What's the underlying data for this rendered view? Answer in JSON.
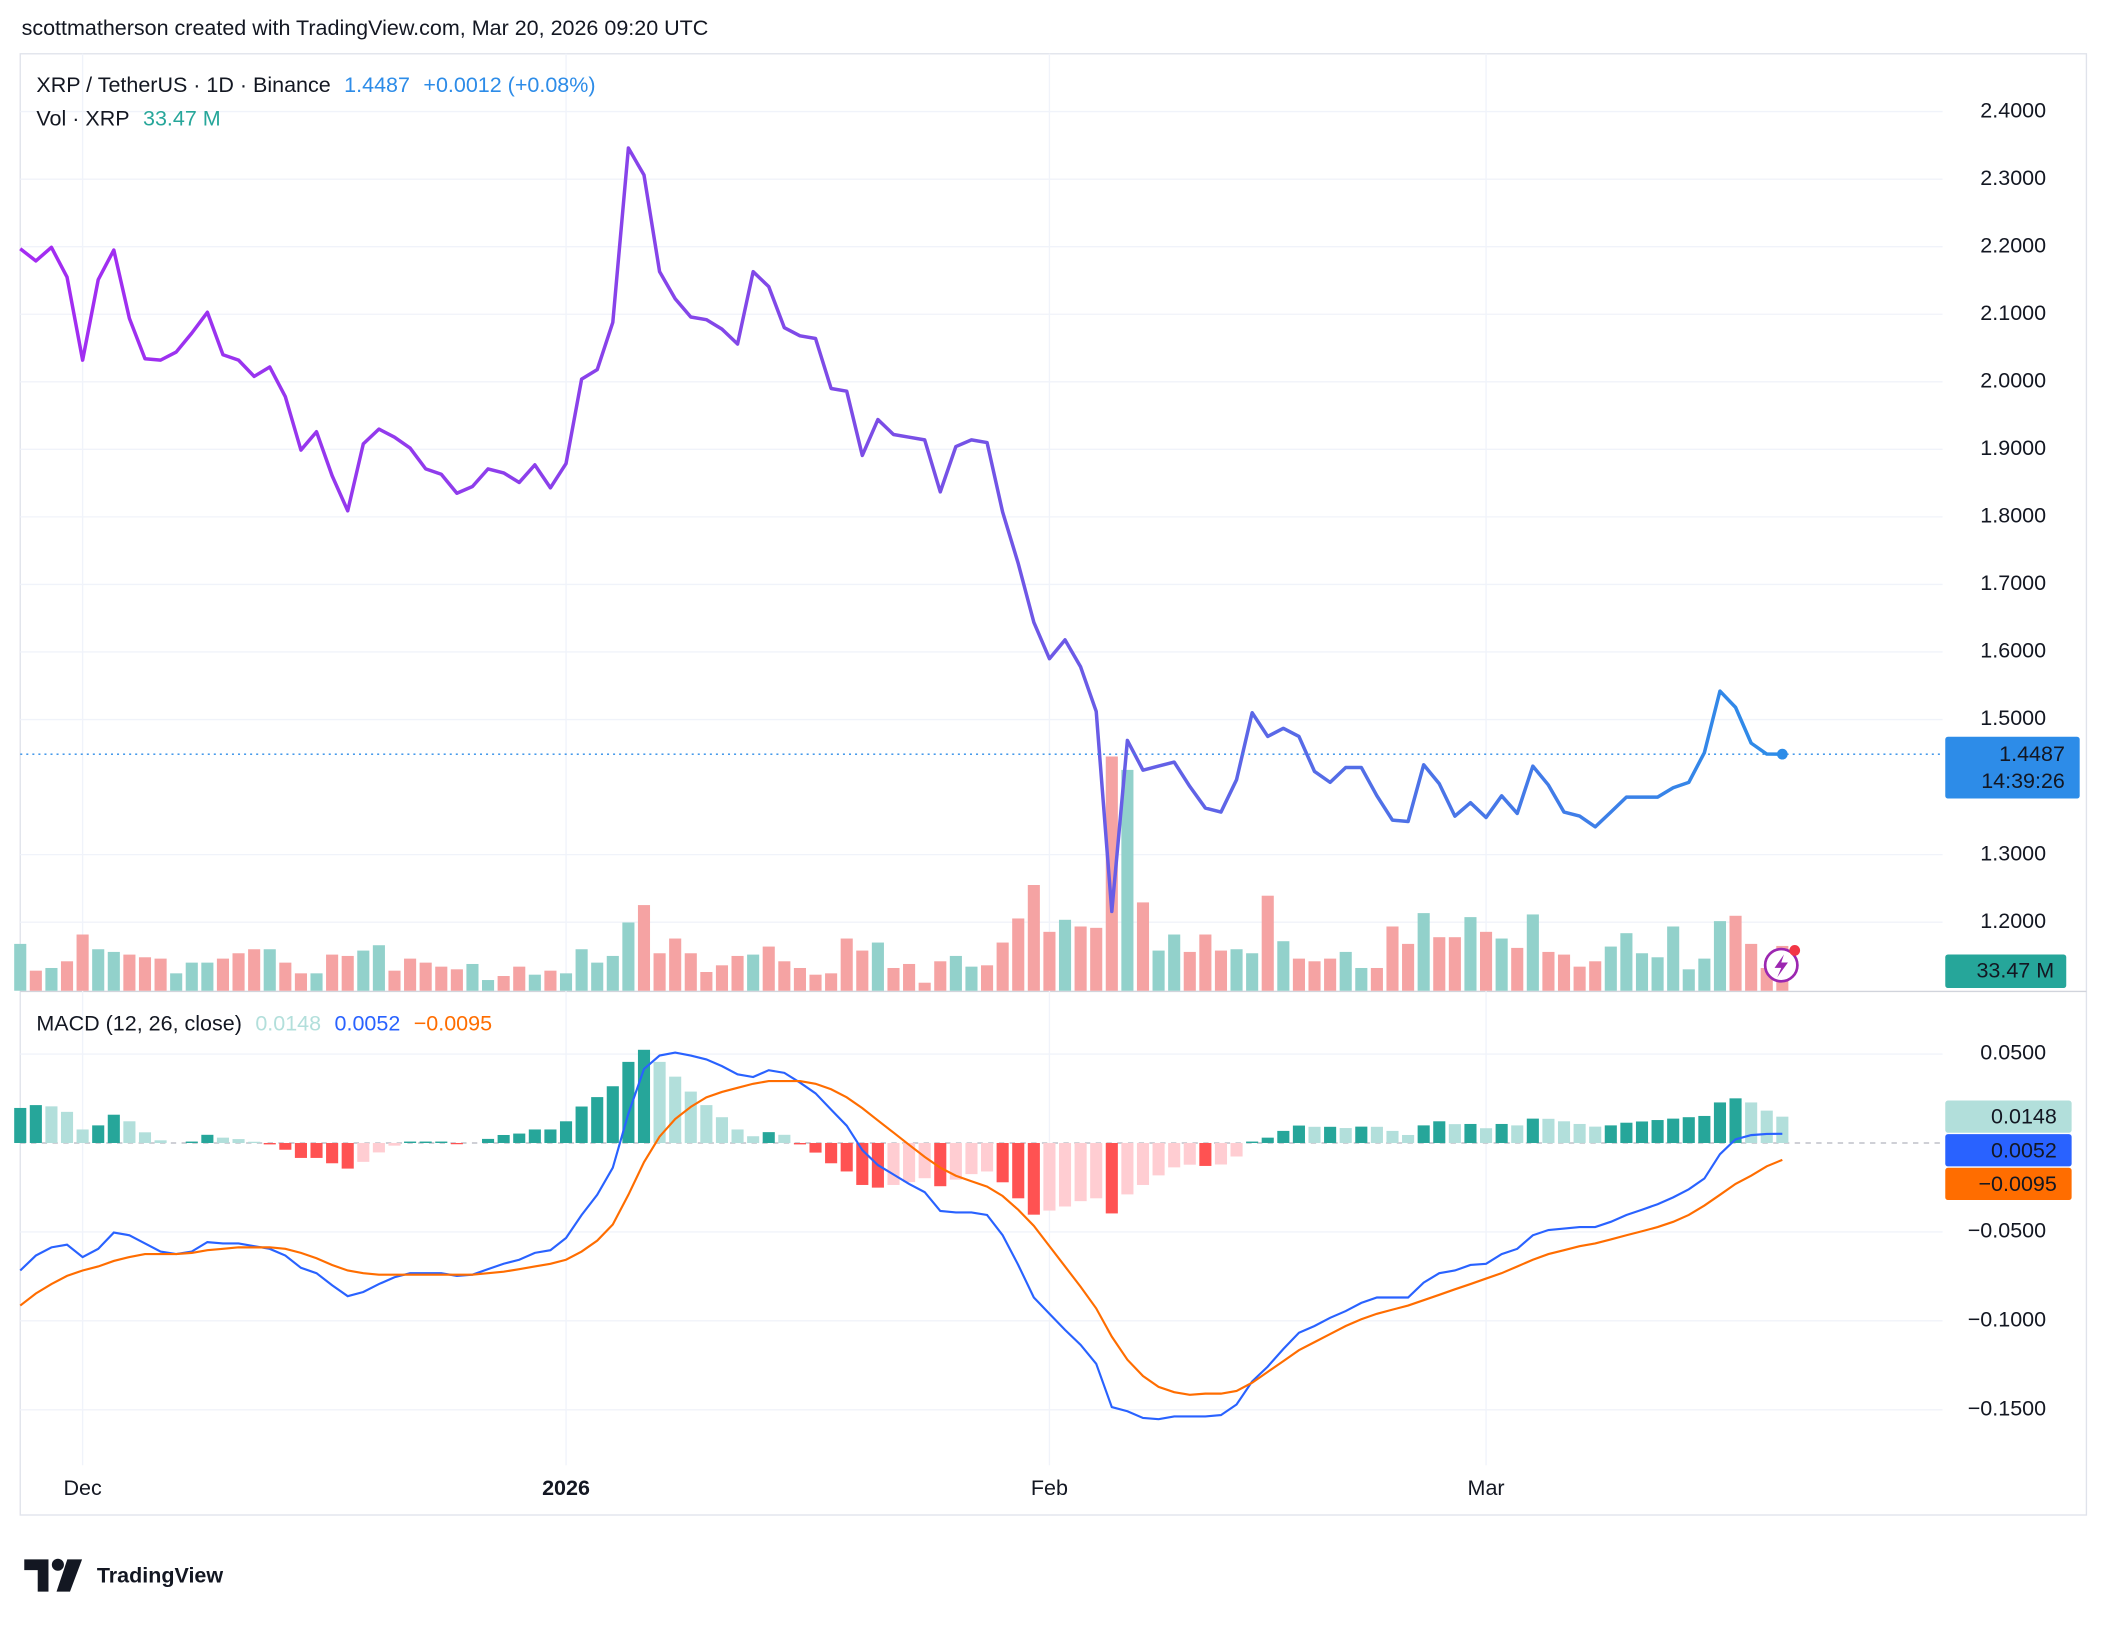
{
  "header": {
    "text": "scottmatherson created with TradingView.com, Mar 20, 2026 09:20 UTC"
  },
  "footer": {
    "brand": "TradingView"
  },
  "chart_data": [
    {
      "type": "line",
      "title": "XRP / TetherUS · 1D · Binance",
      "change": "+0.0012 (+0.08%)",
      "countdown": "14:39:26",
      "gradient": [
        "#a42bf2",
        "#7a4ee6",
        "#2d8ce8"
      ],
      "last_color": "#2d8ce8",
      "grid": true,
      "ylim": [
        1.0985,
        2.4856
      ],
      "yticks": [
        {
          "value": 1.2,
          "label": "1.2000"
        },
        {
          "value": 1.3,
          "label": "1.3000"
        },
        {
          "value": 1.5,
          "label": "1.5000"
        },
        {
          "value": 1.6,
          "label": "1.6000"
        },
        {
          "value": 1.7,
          "label": "1.7000"
        },
        {
          "value": 1.8,
          "label": "1.8000"
        },
        {
          "value": 1.9,
          "label": "1.9000"
        },
        {
          "value": 2.0,
          "label": "2.0000"
        },
        {
          "value": 2.1,
          "label": "2.1000"
        },
        {
          "value": 2.2,
          "label": "2.2000"
        },
        {
          "value": 2.3,
          "label": "2.3000"
        },
        {
          "value": 2.4,
          "label": "2.4000"
        }
      ],
      "values": [
        2.197,
        2.179,
        2.199,
        2.155,
        2.032,
        2.151,
        2.195,
        2.094,
        2.034,
        2.032,
        2.044,
        2.072,
        2.103,
        2.04,
        2.032,
        2.008,
        2.022,
        1.978,
        1.899,
        1.926,
        1.861,
        1.809,
        1.908,
        1.93,
        1.918,
        1.902,
        1.871,
        1.863,
        1.835,
        1.845,
        1.871,
        1.865,
        1.851,
        1.877,
        1.843,
        1.879,
        2.004,
        2.018,
        2.088,
        2.346,
        2.306,
        2.163,
        2.123,
        2.096,
        2.092,
        2.078,
        2.056,
        2.163,
        2.141,
        2.08,
        2.068,
        2.064,
        1.99,
        1.986,
        1.891,
        1.944,
        1.922,
        1.918,
        1.914,
        1.837,
        1.904,
        1.914,
        1.91,
        1.807,
        1.731,
        1.644,
        1.59,
        1.618,
        1.578,
        1.512,
        1.216,
        1.469,
        1.425,
        1.431,
        1.437,
        1.401,
        1.369,
        1.363,
        1.411,
        1.51,
        1.475,
        1.487,
        1.475,
        1.423,
        1.407,
        1.429,
        1.429,
        1.387,
        1.351,
        1.349,
        1.433,
        1.405,
        1.357,
        1.377,
        1.355,
        1.387,
        1.361,
        1.431,
        1.403,
        1.363,
        1.357,
        1.341,
        1.363,
        1.385,
        1.385,
        1.385,
        1.399,
        1.407,
        1.451,
        1.542,
        1.518,
        1.465,
        1.449,
        1.4487
      ]
    },
    {
      "type": "bar",
      "title": "Vol · XRP",
      "value_label": "33.47 M",
      "up_color": "#92d1cb",
      "down_color": "#f5a3a3",
      "label_color": "#26a69a",
      "ylim": [
        0,
        700
      ],
      "values": [
        35,
        15,
        17,
        22,
        42,
        31,
        29,
        27,
        25,
        24,
        13,
        21,
        21,
        24,
        28,
        31,
        31,
        21,
        13,
        13,
        27,
        26,
        30,
        34,
        15,
        24,
        21,
        18,
        16,
        20,
        8,
        11,
        18,
        12,
        15,
        13,
        31,
        21,
        26,
        51,
        64,
        28,
        39,
        28,
        14,
        19,
        26,
        27,
        33,
        22,
        17,
        12,
        13,
        39,
        30,
        36,
        17,
        20,
        6,
        22,
        26,
        18,
        19,
        36,
        54,
        79,
        44,
        53,
        48,
        47,
        175,
        165,
        66,
        30,
        42,
        29,
        42,
        30,
        31,
        28,
        71,
        37,
        24,
        22,
        24,
        29,
        17,
        17,
        48,
        35,
        58,
        40,
        40,
        55,
        44,
        39,
        32,
        57,
        29,
        27,
        18,
        22,
        33,
        43,
        28,
        25,
        48,
        16,
        24,
        52,
        56,
        35,
        17,
        33.47
      ]
    },
    {
      "type": "macd",
      "title": "MACD (12, 26, close)",
      "legend_values": [
        "0.0148",
        "0.0052",
        "−0.0095"
      ],
      "hist_colors": [
        "#26a69a",
        "#b2dfdb",
        "#ff5252",
        "#ffcdd2"
      ],
      "ylim": [
        -0.1812,
        0.0856
      ],
      "yticks": [
        {
          "value": 0.05,
          "label": "0.0500"
        },
        {
          "value": -0.05,
          "label": "−0.0500"
        },
        {
          "value": -0.1,
          "label": "−0.1000"
        },
        {
          "value": -0.15,
          "label": "−0.1500"
        }
      ],
      "categories": [
        null,
        null,
        null,
        null,
        "Dec",
        null,
        null,
        null,
        null,
        null,
        null,
        null,
        null,
        null,
        null,
        null,
        null,
        null,
        null,
        null,
        null,
        null,
        null,
        null,
        null,
        null,
        null,
        null,
        null,
        null,
        null,
        null,
        null,
        null,
        null,
        "2026",
        null,
        null,
        null,
        null,
        null,
        null,
        null,
        null,
        null,
        null,
        null,
        null,
        null,
        null,
        null,
        null,
        null,
        null,
        null,
        null,
        null,
        null,
        null,
        null,
        null,
        null,
        null,
        null,
        null,
        null,
        "Feb",
        null,
        null,
        null,
        null,
        null,
        null,
        null,
        null,
        null,
        null,
        null,
        null,
        null,
        null,
        null,
        null,
        null,
        null,
        null,
        null,
        null,
        null,
        null,
        null,
        null,
        null,
        null,
        "Mar",
        null,
        null,
        null,
        null,
        null,
        null,
        null,
        null,
        null,
        null,
        null,
        null,
        null,
        null,
        null,
        null,
        null,
        null,
        null
      ],
      "histogram": [
        0.0197,
        0.0213,
        0.0206,
        0.0175,
        0.0076,
        0.0099,
        0.0159,
        0.0122,
        0.006,
        0.0015,
        0.0,
        0.0008,
        0.0046,
        0.003,
        0.0022,
        0.0007,
        -0.0008,
        -0.0038,
        -0.0084,
        -0.0084,
        -0.0114,
        -0.0144,
        -0.0106,
        -0.0053,
        -0.0015,
        0.0008,
        0.0008,
        0.0008,
        -0.0007,
        0.0,
        0.0023,
        0.0045,
        0.0053,
        0.0076,
        0.0076,
        0.0122,
        0.0205,
        0.0258,
        0.0319,
        0.0456,
        0.0524,
        0.0456,
        0.0373,
        0.0289,
        0.0213,
        0.0145,
        0.0076,
        0.0038,
        0.0061,
        0.0046,
        -0.0008,
        -0.0054,
        -0.0114,
        -0.016,
        -0.0236,
        -0.0251,
        -0.0236,
        -0.022,
        -0.0198,
        -0.0243,
        -0.0206,
        -0.0175,
        -0.016,
        -0.0221,
        -0.0311,
        -0.0403,
        -0.038,
        -0.0357,
        -0.0327,
        -0.0311,
        -0.0396,
        -0.0289,
        -0.0236,
        -0.0182,
        -0.0137,
        -0.0122,
        -0.0129,
        -0.0121,
        -0.0076,
        0.0008,
        0.003,
        0.0068,
        0.0098,
        0.0091,
        0.0091,
        0.0084,
        0.0092,
        0.0091,
        0.0068,
        0.0045,
        0.0099,
        0.0122,
        0.0106,
        0.0107,
        0.0083,
        0.0107,
        0.0099,
        0.0137,
        0.0136,
        0.0122,
        0.0107,
        0.0092,
        0.0099,
        0.0114,
        0.0121,
        0.0129,
        0.0137,
        0.0145,
        0.0152,
        0.0228,
        0.0251,
        0.0228,
        0.0182,
        0.0148
      ],
      "series": [
        {
          "color": "#2962ff",
          "values": [
            -0.0717,
            -0.0633,
            -0.0587,
            -0.0572,
            -0.0641,
            -0.0595,
            -0.0504,
            -0.0519,
            -0.0565,
            -0.061,
            -0.0625,
            -0.061,
            -0.0557,
            -0.0565,
            -0.0565,
            -0.058,
            -0.0595,
            -0.0633,
            -0.0702,
            -0.0732,
            -0.08,
            -0.0861,
            -0.0838,
            -0.0793,
            -0.0755,
            -0.0732,
            -0.0732,
            -0.0732,
            -0.0747,
            -0.074,
            -0.0709,
            -0.0679,
            -0.0656,
            -0.0618,
            -0.0603,
            -0.0534,
            -0.0405,
            -0.0291,
            -0.0139,
            0.0165,
            0.0416,
            0.0492,
            0.0508,
            0.0492,
            0.047,
            0.0432,
            0.0386,
            0.0371,
            0.0409,
            0.0394,
            0.034,
            0.0279,
            0.0188,
            0.0097,
            -0.004,
            -0.0124,
            -0.0177,
            -0.023,
            -0.0276,
            -0.0382,
            -0.039,
            -0.039,
            -0.0405,
            -0.0519,
            -0.0686,
            -0.0869,
            -0.096,
            -0.1051,
            -0.1135,
            -0.1241,
            -0.1485,
            -0.1508,
            -0.1546,
            -0.1553,
            -0.1538,
            -0.1538,
            -0.1538,
            -0.153,
            -0.147,
            -0.134,
            -0.1257,
            -0.1158,
            -0.1067,
            -0.1029,
            -0.0983,
            -0.0945,
            -0.0899,
            -0.0869,
            -0.0869,
            -0.0869,
            -0.0785,
            -0.0732,
            -0.0717,
            -0.0686,
            -0.0679,
            -0.0625,
            -0.0595,
            -0.0519,
            -0.0489,
            -0.0481,
            -0.0473,
            -0.0473,
            -0.0443,
            -0.0405,
            -0.0375,
            -0.0344,
            -0.0306,
            -0.026,
            -0.02,
            -0.0063,
            0.0021,
            0.0044,
            0.0051,
            0.0052
          ]
        },
        {
          "color": "#ff6d00",
          "values": [
            -0.0914,
            -0.0846,
            -0.0793,
            -0.0747,
            -0.0717,
            -0.0694,
            -0.0663,
            -0.0641,
            -0.0625,
            -0.0625,
            -0.0625,
            -0.0618,
            -0.0603,
            -0.0595,
            -0.0587,
            -0.0587,
            -0.0587,
            -0.0595,
            -0.0618,
            -0.0648,
            -0.0686,
            -0.0717,
            -0.0732,
            -0.074,
            -0.074,
            -0.074,
            -0.074,
            -0.074,
            -0.074,
            -0.074,
            -0.0732,
            -0.0724,
            -0.0709,
            -0.0694,
            -0.0679,
            -0.0656,
            -0.061,
            -0.0549,
            -0.0458,
            -0.0291,
            -0.0108,
            0.0036,
            0.0135,
            0.0203,
            0.0257,
            0.0287,
            0.031,
            0.0333,
            0.0348,
            0.0348,
            0.0348,
            0.0333,
            0.0302,
            0.0257,
            0.0196,
            0.0127,
            0.0059,
            -0.001,
            -0.0078,
            -0.0139,
            -0.0184,
            -0.0215,
            -0.0245,
            -0.0298,
            -0.0375,
            -0.0466,
            -0.058,
            -0.0694,
            -0.0808,
            -0.093,
            -0.1089,
            -0.1219,
            -0.131,
            -0.1371,
            -0.1401,
            -0.1416,
            -0.1409,
            -0.1409,
            -0.1394,
            -0.1348,
            -0.1287,
            -0.1226,
            -0.1165,
            -0.112,
            -0.1074,
            -0.1029,
            -0.0991,
            -0.096,
            -0.0937,
            -0.0914,
            -0.0884,
            -0.0854,
            -0.0823,
            -0.0793,
            -0.0762,
            -0.0732,
            -0.0694,
            -0.0656,
            -0.0625,
            -0.0603,
            -0.058,
            -0.0565,
            -0.0542,
            -0.0519,
            -0.0496,
            -0.0473,
            -0.0443,
            -0.0405,
            -0.0352,
            -0.0291,
            -0.023,
            -0.0184,
            -0.0131,
            -0.0095
          ]
        }
      ]
    }
  ]
}
